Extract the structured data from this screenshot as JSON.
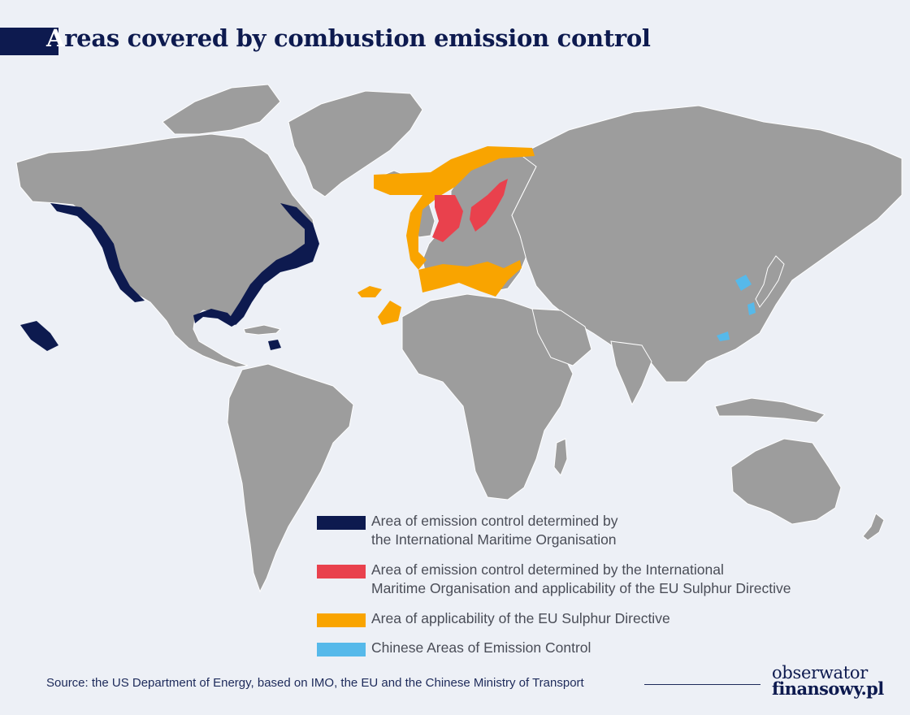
{
  "title": {
    "first_letter": "A",
    "rest": "reas covered by combustion emission control"
  },
  "colors": {
    "land": "#9d9d9d",
    "land_border": "#ffffff",
    "background": "#edf0f6",
    "imo": "#0d1a4f",
    "imo_eu": "#e9414d",
    "eu": "#f9a400",
    "china": "#56b9ea"
  },
  "legend": [
    {
      "key": "imo",
      "label": "Area of emission control determined by\nthe International Maritime Organisation"
    },
    {
      "key": "imo_eu",
      "label": "Area of emission control determined by the International\nMaritime Organisation and applicability of the EU Sulphur Directive"
    },
    {
      "key": "eu",
      "label": "Area of applicability of the EU Sulphur Directive"
    },
    {
      "key": "china",
      "label": "Chinese Areas of Emission Control"
    }
  ],
  "source": "Source: the US Department of Energy, based on IMO, the EU and the Chinese Ministry of Transport",
  "logo": {
    "line1": "obserwator",
    "line2": "finansowy.pl"
  }
}
